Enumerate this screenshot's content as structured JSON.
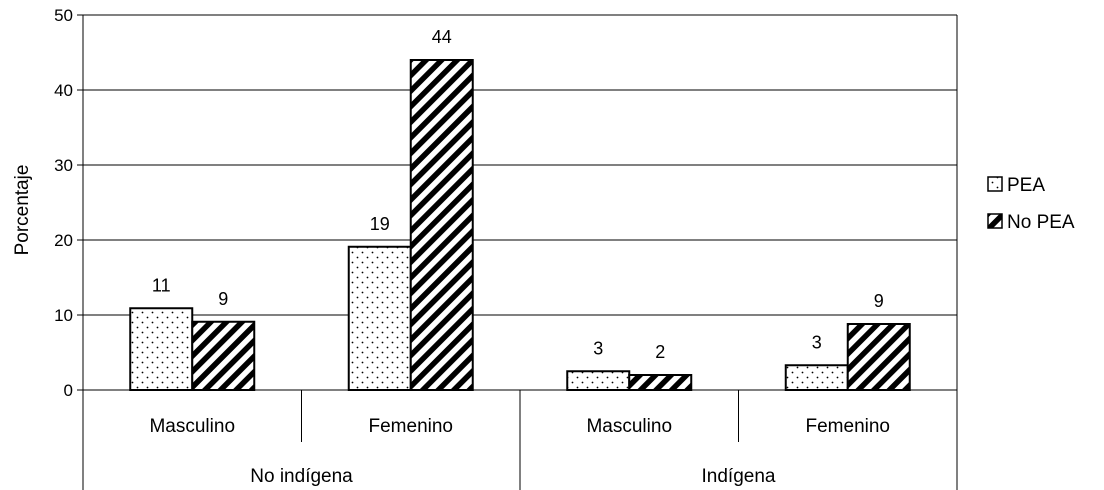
{
  "chart_data": {
    "type": "bar",
    "title": "",
    "ylabel": "Porcentaje",
    "ylim": [
      0,
      50
    ],
    "yticks": [
      0,
      10,
      20,
      30,
      40,
      50
    ],
    "grid": true,
    "legend_position": "right",
    "categories": [
      {
        "label": "Masculino",
        "group": "No indígena"
      },
      {
        "label": "Femenino",
        "group": "No indígena"
      },
      {
        "label": "Masculino",
        "group": "Indígena"
      },
      {
        "label": "Femenino",
        "group": "Indígena"
      }
    ],
    "groups": [
      "No indígena",
      "Indígena"
    ],
    "series": [
      {
        "name": "PEA",
        "pattern": "dots",
        "values": [
          10.9,
          19.1,
          2.5,
          3.3
        ],
        "labels": [
          "11",
          "19",
          "3",
          "3"
        ]
      },
      {
        "name": "No PEA",
        "pattern": "diagonal-hatch",
        "values": [
          9.1,
          44.0,
          2.0,
          8.8
        ],
        "labels": [
          "9",
          "44",
          "2",
          "9"
        ]
      }
    ]
  },
  "colors": {
    "bar_fill": "#ffffff",
    "bar_stroke": "#000000",
    "grid": "#000000"
  }
}
